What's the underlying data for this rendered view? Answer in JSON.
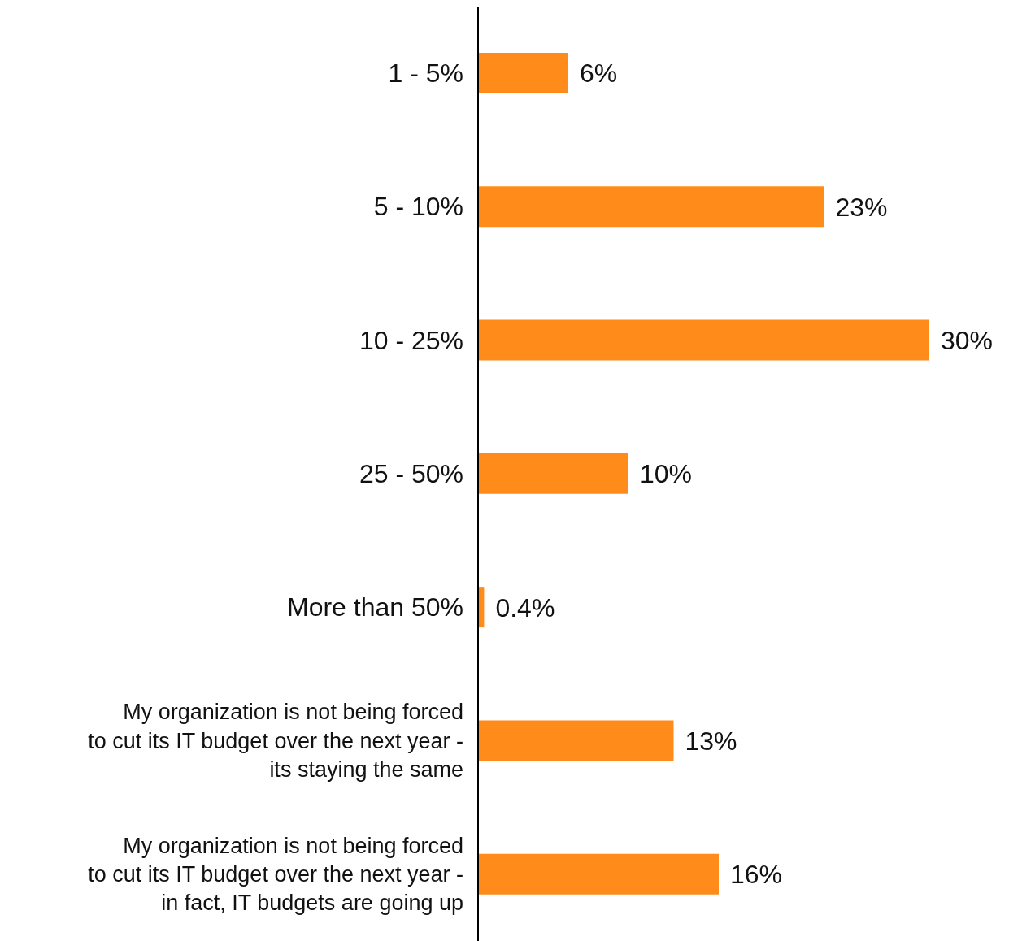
{
  "chart_data": {
    "type": "bar",
    "orientation": "horizontal",
    "categories": [
      "1 - 5%",
      "5 - 10%",
      "10 - 25%",
      "25 - 50%",
      "More than 50%",
      "My organization is not being forced\nto cut its IT budget over the next year -\nits staying the same",
      "My organization is not being forced\nto cut its IT budget over the next year -\nin fact, IT budgets are going up"
    ],
    "values": [
      6,
      23,
      30,
      10,
      0.4,
      13,
      16
    ],
    "value_labels": [
      "6%",
      "23%",
      "30%",
      "10%",
      "0.4%",
      "13%",
      "16%"
    ],
    "color": "#ff8c1a",
    "grid": false,
    "legend": false
  }
}
